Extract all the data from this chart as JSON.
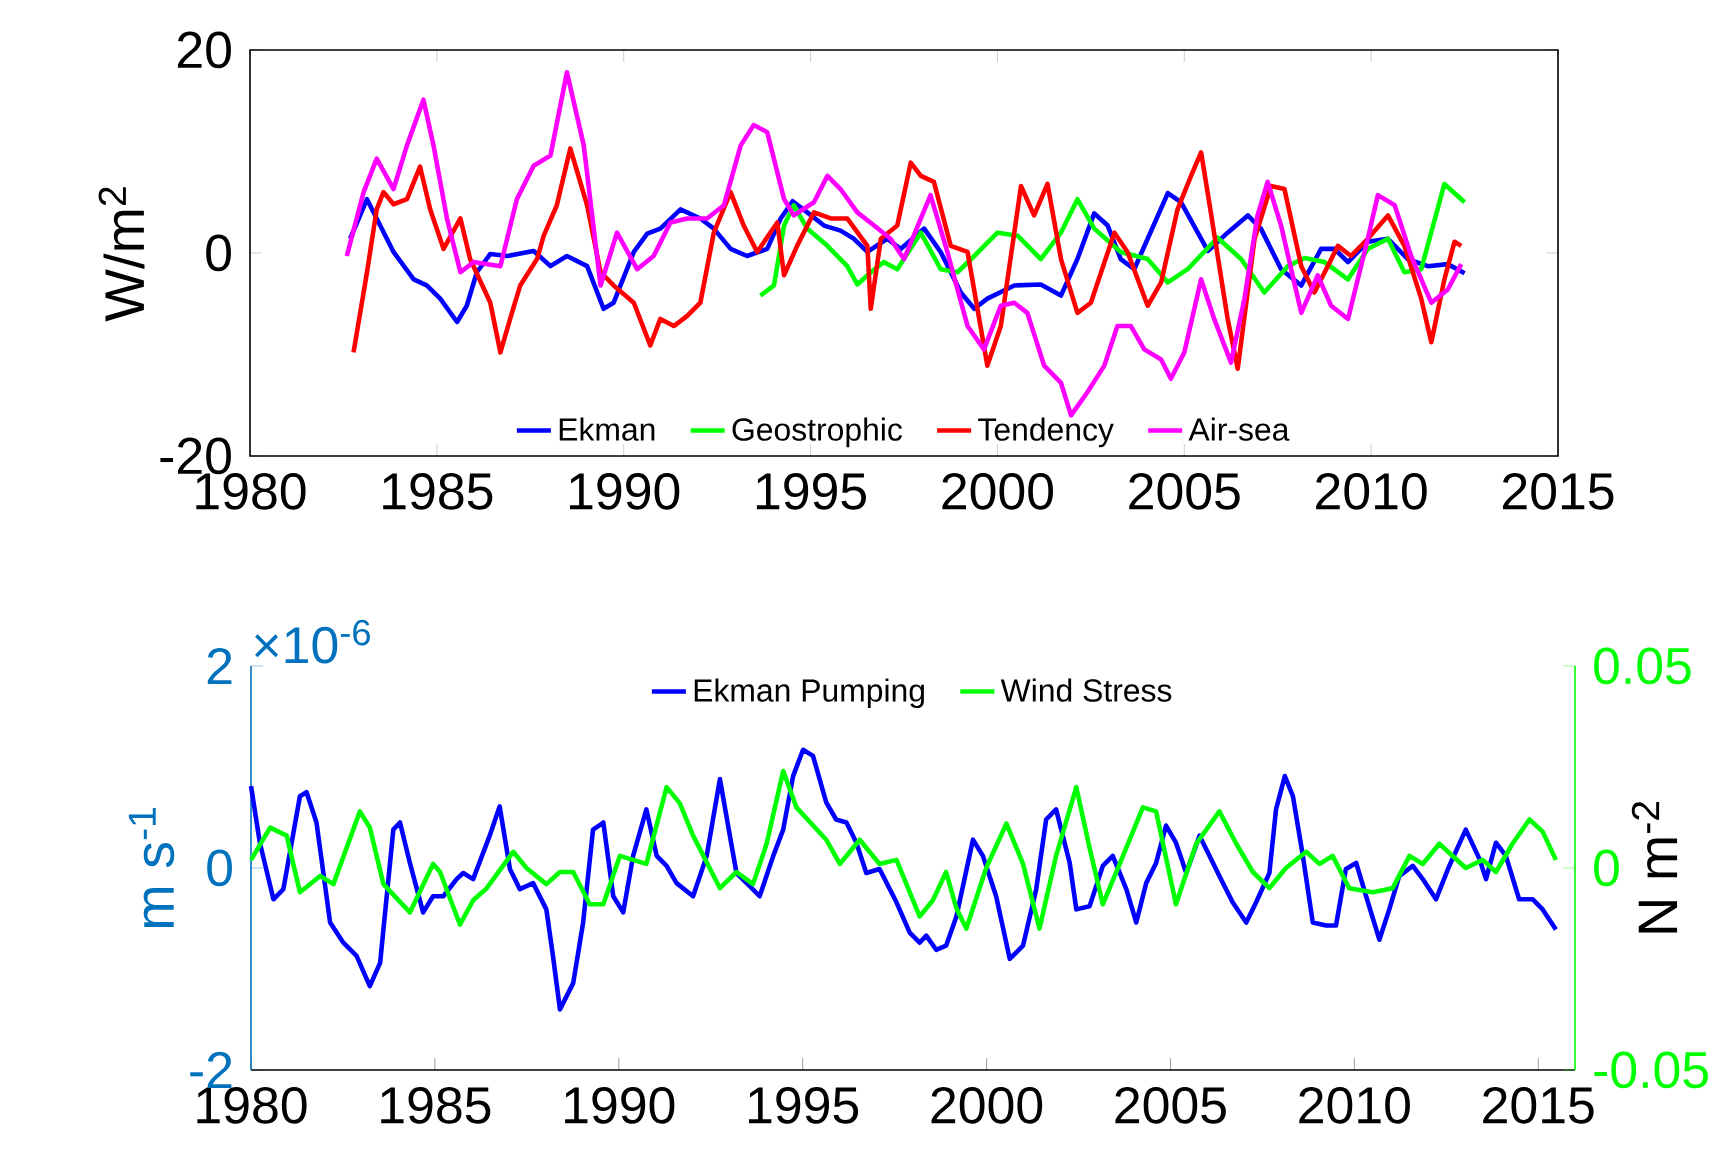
{
  "chart_data": [
    {
      "type": "line",
      "ylabel": "W/m$^{2}$",
      "xlim": [
        1980,
        2015
      ],
      "xticks": [
        1980,
        1985,
        1990,
        1995,
        2000,
        2005,
        2010,
        2015
      ],
      "ylim": [
        -20,
        20
      ],
      "yticks": [
        -20,
        0,
        20
      ],
      "legend": "bottom",
      "series": [
        {
          "name": "Ekman",
          "color": "#0000ff",
          "x": [
            1982.68,
            1983.13,
            1983.84,
            1984.38,
            1984.73,
            1985.09,
            1985.54,
            1985.8,
            1986.07,
            1986.43,
            1986.88,
            1987.59,
            1988.04,
            1988.48,
            1989.02,
            1989.46,
            1989.73,
            1990.27,
            1990.63,
            1990.98,
            1991.52,
            1992.05,
            1992.41,
            1992.86,
            1993.3,
            1993.84,
            1994.2,
            1994.52,
            1994.91,
            1995.36,
            1995.8,
            1996.16,
            1996.52,
            1997.05,
            1997.41,
            1998.04,
            1998.48,
            1999.02,
            1999.38,
            1999.73,
            2000.45,
            2001.16,
            2001.7,
            2002.14,
            2002.59,
            2002.95,
            2003.3,
            2003.66,
            2004.02,
            2004.56,
            2004.91,
            2005.63,
            2006.16,
            2006.7,
            2007.05,
            2007.59,
            2008.13,
            2008.66,
            2009.02,
            2009.38,
            2009.91,
            2010.45,
            2010.98,
            2011.52,
            2012.05,
            2012.5
          ],
          "values": [
            1.4,
            5.3,
            0.1,
            -2.6,
            -3.2,
            -4.5,
            -6.8,
            -5.2,
            -1.9,
            -0.1,
            -0.3,
            0.2,
            -1.3,
            -0.3,
            -1.3,
            -5.5,
            -4.9,
            0.1,
            1.9,
            2.4,
            4.3,
            3.4,
            2.4,
            0.4,
            -0.3,
            0.4,
            3.4,
            5.1,
            4.0,
            2.7,
            2.2,
            1.4,
            0.1,
            1.4,
            0.4,
            2.4,
            0.1,
            -3.9,
            -5.5,
            -4.5,
            -3.2,
            -3.1,
            -4.2,
            -0.6,
            3.9,
            2.7,
            -0.6,
            -1.6,
            1.4,
            5.9,
            5.0,
            0.2,
            2.0,
            3.7,
            2.4,
            -1.6,
            -3.2,
            0.4,
            0.4,
            -0.9,
            1.1,
            1.4,
            -0.6,
            -1.3,
            -1.1,
            -2.0
          ]
        },
        {
          "name": "Geostrophic",
          "color": "#00ff00",
          "x": [
            1993.66,
            1994.02,
            1994.29,
            1994.55,
            1994.91,
            1995.45,
            1995.98,
            1996.25,
            1996.61,
            1996.96,
            1997.32,
            1997.95,
            1998.48,
            1998.93,
            1999.38,
            2000.0,
            2000.54,
            2001.16,
            2001.7,
            2002.14,
            2002.59,
            2003.3,
            2004.02,
            2004.56,
            2005.09,
            2005.89,
            2006.52,
            2007.14,
            2007.77,
            2008.22,
            2008.75,
            2009.38,
            2009.91,
            2010.45,
            2010.89,
            2011.34,
            2011.96,
            2012.5
          ],
          "values": [
            -4.2,
            -3.2,
            2.7,
            4.7,
            2.4,
            0.7,
            -1.3,
            -3.1,
            -1.9,
            -0.9,
            -1.6,
            2.0,
            -1.6,
            -1.9,
            -0.3,
            2.0,
            1.7,
            -0.6,
            2.0,
            5.3,
            2.4,
            0.1,
            -0.6,
            -2.9,
            -1.6,
            1.5,
            -0.6,
            -3.9,
            -1.3,
            -0.5,
            -0.9,
            -2.6,
            0.4,
            1.4,
            -1.9,
            -1.6,
            6.8,
            5.0
          ]
        },
        {
          "name": "Tendency",
          "color": "#ff0000",
          "x": [
            1982.77,
            1983.13,
            1983.39,
            1983.57,
            1983.84,
            1984.2,
            1984.55,
            1984.82,
            1985.18,
            1985.63,
            1985.89,
            1986.43,
            1986.7,
            1986.96,
            1987.23,
            1987.68,
            1987.86,
            1988.21,
            1988.57,
            1989.02,
            1989.38,
            1989.73,
            1990.27,
            1990.71,
            1990.98,
            1991.34,
            1991.7,
            1992.05,
            1992.41,
            1992.86,
            1993.21,
            1993.57,
            1994.11,
            1994.29,
            1994.64,
            1995.09,
            1995.54,
            1995.98,
            1996.52,
            1996.61,
            1996.88,
            1997.32,
            1997.68,
            1997.95,
            1998.3,
            1998.75,
            1999.2,
            1999.73,
            2000.09,
            2000.63,
            2000.98,
            2001.34,
            2001.7,
            2002.14,
            2002.5,
            2003.13,
            2003.48,
            2004.02,
            2004.38,
            2004.82,
            2005.18,
            2005.45,
            2005.71,
            2006.16,
            2006.43,
            2006.88,
            2007.32,
            2007.68,
            2008.13,
            2008.48,
            2008.84,
            2009.11,
            2009.46,
            2009.91,
            2010.45,
            2010.89,
            2011.34,
            2011.61,
            2011.96,
            2012.23,
            2012.41
          ],
          "values": [
            -9.8,
            -1.9,
            4.3,
            6.0,
            4.8,
            5.3,
            8.5,
            4.3,
            0.4,
            3.4,
            -0.6,
            -4.9,
            -9.8,
            -6.5,
            -3.2,
            -0.6,
            1.7,
            4.7,
            10.3,
            4.7,
            -1.9,
            -3.2,
            -4.9,
            -9.1,
            -6.5,
            -7.2,
            -6.2,
            -4.9,
            2.0,
            6.0,
            2.7,
            0.1,
            3.0,
            -2.2,
            0.7,
            4.0,
            3.4,
            3.4,
            0.7,
            -5.5,
            1.4,
            2.7,
            8.9,
            7.6,
            7.0,
            0.7,
            0.1,
            -11.1,
            -7.2,
            6.6,
            3.7,
            6.8,
            -0.6,
            -5.9,
            -4.9,
            2.0,
            0.1,
            -5.2,
            -2.9,
            4.3,
            7.6,
            9.9,
            4.0,
            -6.5,
            -11.4,
            1.4,
            6.6,
            6.3,
            -1.3,
            -3.9,
            -1.3,
            0.7,
            -0.3,
            1.4,
            3.7,
            0.7,
            -4.5,
            -8.8,
            -2.6,
            1.1,
            0.7
          ]
        },
        {
          "name": "Air-sea",
          "color": "#ff00ff",
          "x": [
            1982.59,
            1983.04,
            1983.39,
            1983.84,
            1984.2,
            1984.64,
            1984.91,
            1985.27,
            1985.63,
            1985.98,
            1986.7,
            1987.14,
            1987.59,
            1988.04,
            1988.48,
            1988.93,
            1989.38,
            1989.82,
            1990.36,
            1990.8,
            1991.25,
            1991.7,
            1992.23,
            1992.68,
            1993.13,
            1993.48,
            1993.84,
            1994.29,
            1994.55,
            1995.09,
            1995.45,
            1995.8,
            1996.25,
            1996.7,
            1997.14,
            1997.5,
            1998.21,
            1998.66,
            1999.2,
            1999.64,
            2000.09,
            2000.45,
            2000.8,
            2001.25,
            2001.7,
            2001.97,
            2002.41,
            2002.86,
            2003.21,
            2003.57,
            2003.93,
            2004.38,
            2004.64,
            2005.0,
            2005.45,
            2005.8,
            2006.25,
            2006.61,
            2006.96,
            2007.23,
            2007.59,
            2008.13,
            2008.57,
            2008.93,
            2009.38,
            2009.91,
            2010.18,
            2010.63,
            2011.07,
            2011.61,
            2012.05,
            2012.41
          ],
          "values": [
            -0.3,
            6.0,
            9.3,
            6.3,
            10.6,
            15.1,
            10.6,
            3.4,
            -1.9,
            -0.9,
            -1.3,
            5.3,
            8.6,
            9.6,
            17.8,
            10.6,
            -3.2,
            2.0,
            -1.6,
            -0.3,
            3.0,
            3.4,
            3.4,
            4.7,
            10.6,
            12.6,
            11.9,
            5.3,
            3.7,
            5.0,
            7.6,
            6.3,
            4.0,
            2.7,
            1.4,
            -0.6,
            5.7,
            0.1,
            -7.2,
            -9.5,
            -5.2,
            -4.9,
            -5.9,
            -11.1,
            -12.8,
            -16.0,
            -13.7,
            -11.1,
            -7.2,
            -7.2,
            -9.5,
            -10.5,
            -12.4,
            -9.8,
            -2.6,
            -6.5,
            -10.8,
            -4.5,
            3.7,
            7.0,
            2.7,
            -5.9,
            -2.2,
            -5.2,
            -6.5,
            1.4,
            5.7,
            4.7,
            -0.3,
            -4.9,
            -3.6,
            -1.1
          ]
        }
      ]
    },
    {
      "type": "line",
      "ylabel": "m s$^{-1}$",
      "y2label": "N m$^{-2}$",
      "annotations": [
        "×10$^{-6}$"
      ],
      "xlim": [
        1980,
        2016
      ],
      "xticks": [
        1980,
        1985,
        1990,
        1995,
        2000,
        2005,
        2010,
        2015
      ],
      "ylim": [
        -2,
        2
      ],
      "yticks": [
        -2,
        0,
        2
      ],
      "y2lim": [
        -0.05,
        0.05
      ],
      "y2ticks": [
        -0.05,
        0,
        0.05
      ],
      "legend": "top",
      "series": [
        {
          "name": "Ekman Pumping",
          "color": "#0000ff",
          "x": [
            1980.0,
            1980.24,
            1980.61,
            1980.88,
            1981.33,
            1981.51,
            1981.78,
            1982.15,
            1982.51,
            1982.87,
            1983.23,
            1983.51,
            1983.87,
            1984.05,
            1984.32,
            1984.68,
            1984.95,
            1985.23,
            1985.59,
            1985.77,
            1986.04,
            1986.49,
            1986.76,
            1987.04,
            1987.31,
            1987.67,
            1988.03,
            1988.21,
            1988.4,
            1988.76,
            1989.03,
            1989.3,
            1989.58,
            1989.85,
            1990.12,
            1990.39,
            1990.75,
            1991.03,
            1991.3,
            1991.57,
            1992.02,
            1992.39,
            1992.75,
            1993.02,
            1993.2,
            1993.56,
            1993.83,
            1994.2,
            1994.47,
            1994.74,
            1995.01,
            1995.28,
            1995.64,
            1995.91,
            1996.19,
            1996.46,
            1996.73,
            1997.09,
            1997.55,
            1997.91,
            1998.18,
            1998.36,
            1998.63,
            1998.9,
            1999.18,
            1999.63,
            1999.9,
            2000.26,
            2000.63,
            2000.99,
            2001.35,
            2001.62,
            2001.89,
            2002.26,
            2002.44,
            2002.8,
            2003.16,
            2003.43,
            2003.8,
            2004.07,
            2004.34,
            2004.61,
            2004.88,
            2005.15,
            2005.43,
            2005.79,
            2006.06,
            2006.33,
            2006.69,
            2007.06,
            2007.33,
            2007.69,
            2007.87,
            2008.11,
            2008.33,
            2008.6,
            2008.87,
            2009.23,
            2009.5,
            2009.77,
            2010.05,
            2010.32,
            2010.68,
            2010.95,
            2011.22,
            2011.59,
            2011.86,
            2012.22,
            2012.58,
            2013.03,
            2013.4,
            2013.58,
            2013.85,
            2014.12,
            2014.48,
            2014.85,
            2015.12,
            2015.48
          ],
          "values": [
            0.81,
            0.25,
            -0.31,
            -0.21,
            0.71,
            0.75,
            0.45,
            -0.54,
            -0.74,
            -0.87,
            -1.17,
            -0.94,
            0.38,
            0.45,
            0.05,
            -0.44,
            -0.28,
            -0.28,
            -0.11,
            -0.05,
            -0.11,
            0.32,
            0.61,
            -0.01,
            -0.21,
            -0.15,
            -0.41,
            -0.87,
            -1.4,
            -1.14,
            -0.54,
            0.38,
            0.45,
            -0.28,
            -0.44,
            0.12,
            0.58,
            0.12,
            0.02,
            -0.15,
            -0.28,
            0.12,
            0.88,
            0.32,
            -0.05,
            -0.18,
            -0.28,
            0.12,
            0.38,
            0.91,
            1.17,
            1.11,
            0.65,
            0.48,
            0.45,
            0.25,
            -0.05,
            -0.01,
            -0.34,
            -0.64,
            -0.74,
            -0.67,
            -0.81,
            -0.77,
            -0.48,
            0.28,
            0.12,
            -0.28,
            -0.9,
            -0.77,
            -0.21,
            0.48,
            0.58,
            0.05,
            -0.41,
            -0.38,
            0.02,
            0.12,
            -0.21,
            -0.54,
            -0.15,
            0.05,
            0.42,
            0.25,
            -0.05,
            0.32,
            0.12,
            -0.08,
            -0.34,
            -0.54,
            -0.34,
            -0.05,
            0.58,
            0.91,
            0.71,
            0.12,
            -0.54,
            -0.57,
            -0.57,
            -0.01,
            0.05,
            -0.28,
            -0.71,
            -0.41,
            -0.08,
            0.02,
            -0.11,
            -0.31,
            0.02,
            0.38,
            0.09,
            -0.11,
            0.25,
            0.12,
            -0.31,
            -0.31,
            -0.41,
            -0.61
          ]
        },
        {
          "name": "Wind Stress",
          "color": "#00ff00",
          "axis": "y2",
          "x": [
            1980.0,
            1980.52,
            1980.97,
            1981.33,
            1981.88,
            1982.24,
            1982.96,
            1983.23,
            1983.6,
            1984.32,
            1984.95,
            1985.14,
            1985.68,
            1986.04,
            1986.41,
            1987.13,
            1987.49,
            1988.03,
            1988.4,
            1988.76,
            1989.21,
            1989.58,
            1990.03,
            1990.75,
            1991.3,
            1991.66,
            1992.02,
            1992.75,
            1993.2,
            1993.65,
            1994.02,
            1994.47,
            1994.83,
            1995.64,
            1996.01,
            1996.55,
            1997.09,
            1997.55,
            1998.18,
            1998.54,
            1998.9,
            1999.18,
            1999.45,
            1999.99,
            2000.54,
            2000.99,
            2001.44,
            2001.89,
            2002.44,
            2002.8,
            2003.16,
            2003.62,
            2004.25,
            2004.61,
            2005.15,
            2005.7,
            2006.33,
            2006.79,
            2007.24,
            2007.69,
            2008.14,
            2008.69,
            2009.05,
            2009.41,
            2009.86,
            2010.5,
            2011.04,
            2011.5,
            2011.86,
            2012.31,
            2013.03,
            2013.49,
            2013.85,
            2014.3,
            2014.76,
            2015.12,
            2015.48
          ],
          "values": [
            0.002,
            0.01,
            0.008,
            -0.006,
            -0.002,
            -0.004,
            0.014,
            0.01,
            -0.004,
            -0.011,
            0.001,
            -0.001,
            -0.014,
            -0.008,
            -0.005,
            0.004,
            0,
            -0.004,
            -0.001,
            -0.001,
            -0.009,
            -0.009,
            0.003,
            0.001,
            0.02,
            0.016,
            0.008,
            -0.005,
            -0.001,
            -0.004,
            0.006,
            0.024,
            0.015,
            0.007,
            0.001,
            0.007,
            0.001,
            0.002,
            -0.012,
            -0.008,
            -0.001,
            -0.01,
            -0.015,
            0,
            0.011,
            0.001,
            -0.015,
            0.003,
            0.02,
            0.005,
            -0.009,
            0.001,
            0.015,
            0.014,
            -0.009,
            0.006,
            0.014,
            0.006,
            -0.001,
            -0.005,
            0,
            0.004,
            0.001,
            0.003,
            -0.005,
            -0.006,
            -0.005,
            0.003,
            0.001,
            0.006,
            0,
            0.002,
            -0.001,
            0.006,
            0.012,
            0.009,
            0.002
          ]
        }
      ]
    }
  ]
}
